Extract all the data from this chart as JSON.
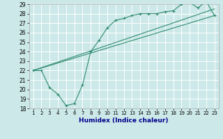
{
  "title": "",
  "xlabel": "Humidex (Indice chaleur)",
  "bg_color": "#cce8e8",
  "grid_color": "#ffffff",
  "line_color": "#2e8b70",
  "xlim": [
    0.5,
    23.5
  ],
  "ylim": [
    18,
    29
  ],
  "xticks": [
    1,
    2,
    3,
    4,
    5,
    6,
    7,
    8,
    9,
    10,
    11,
    12,
    13,
    14,
    15,
    16,
    17,
    18,
    19,
    20,
    21,
    22,
    23
  ],
  "yticks": [
    18,
    19,
    20,
    21,
    22,
    23,
    24,
    25,
    26,
    27,
    28,
    29
  ],
  "series1_x": [
    1,
    2,
    3,
    4,
    5,
    6,
    7,
    8,
    9,
    10,
    11,
    12,
    13,
    14,
    15,
    16,
    17,
    18,
    19,
    20,
    21,
    22,
    23
  ],
  "series1_y": [
    22.0,
    22.0,
    20.2,
    19.5,
    18.3,
    18.5,
    20.5,
    24.0,
    25.2,
    26.5,
    27.3,
    27.5,
    27.8,
    28.0,
    28.0,
    28.0,
    28.2,
    28.3,
    29.0,
    29.2,
    28.6,
    29.3,
    27.8
  ],
  "series2_x": [
    1,
    23
  ],
  "series2_y": [
    22.0,
    27.8
  ],
  "series3_x": [
    1,
    23
  ],
  "series3_y": [
    22.0,
    28.5
  ],
  "xlabel_color": "#00008b",
  "xlabel_fontsize": 6.5,
  "tick_fontsize": 5.0,
  "ytick_fontsize": 5.5,
  "linewidth": 0.8,
  "marker": "+"
}
